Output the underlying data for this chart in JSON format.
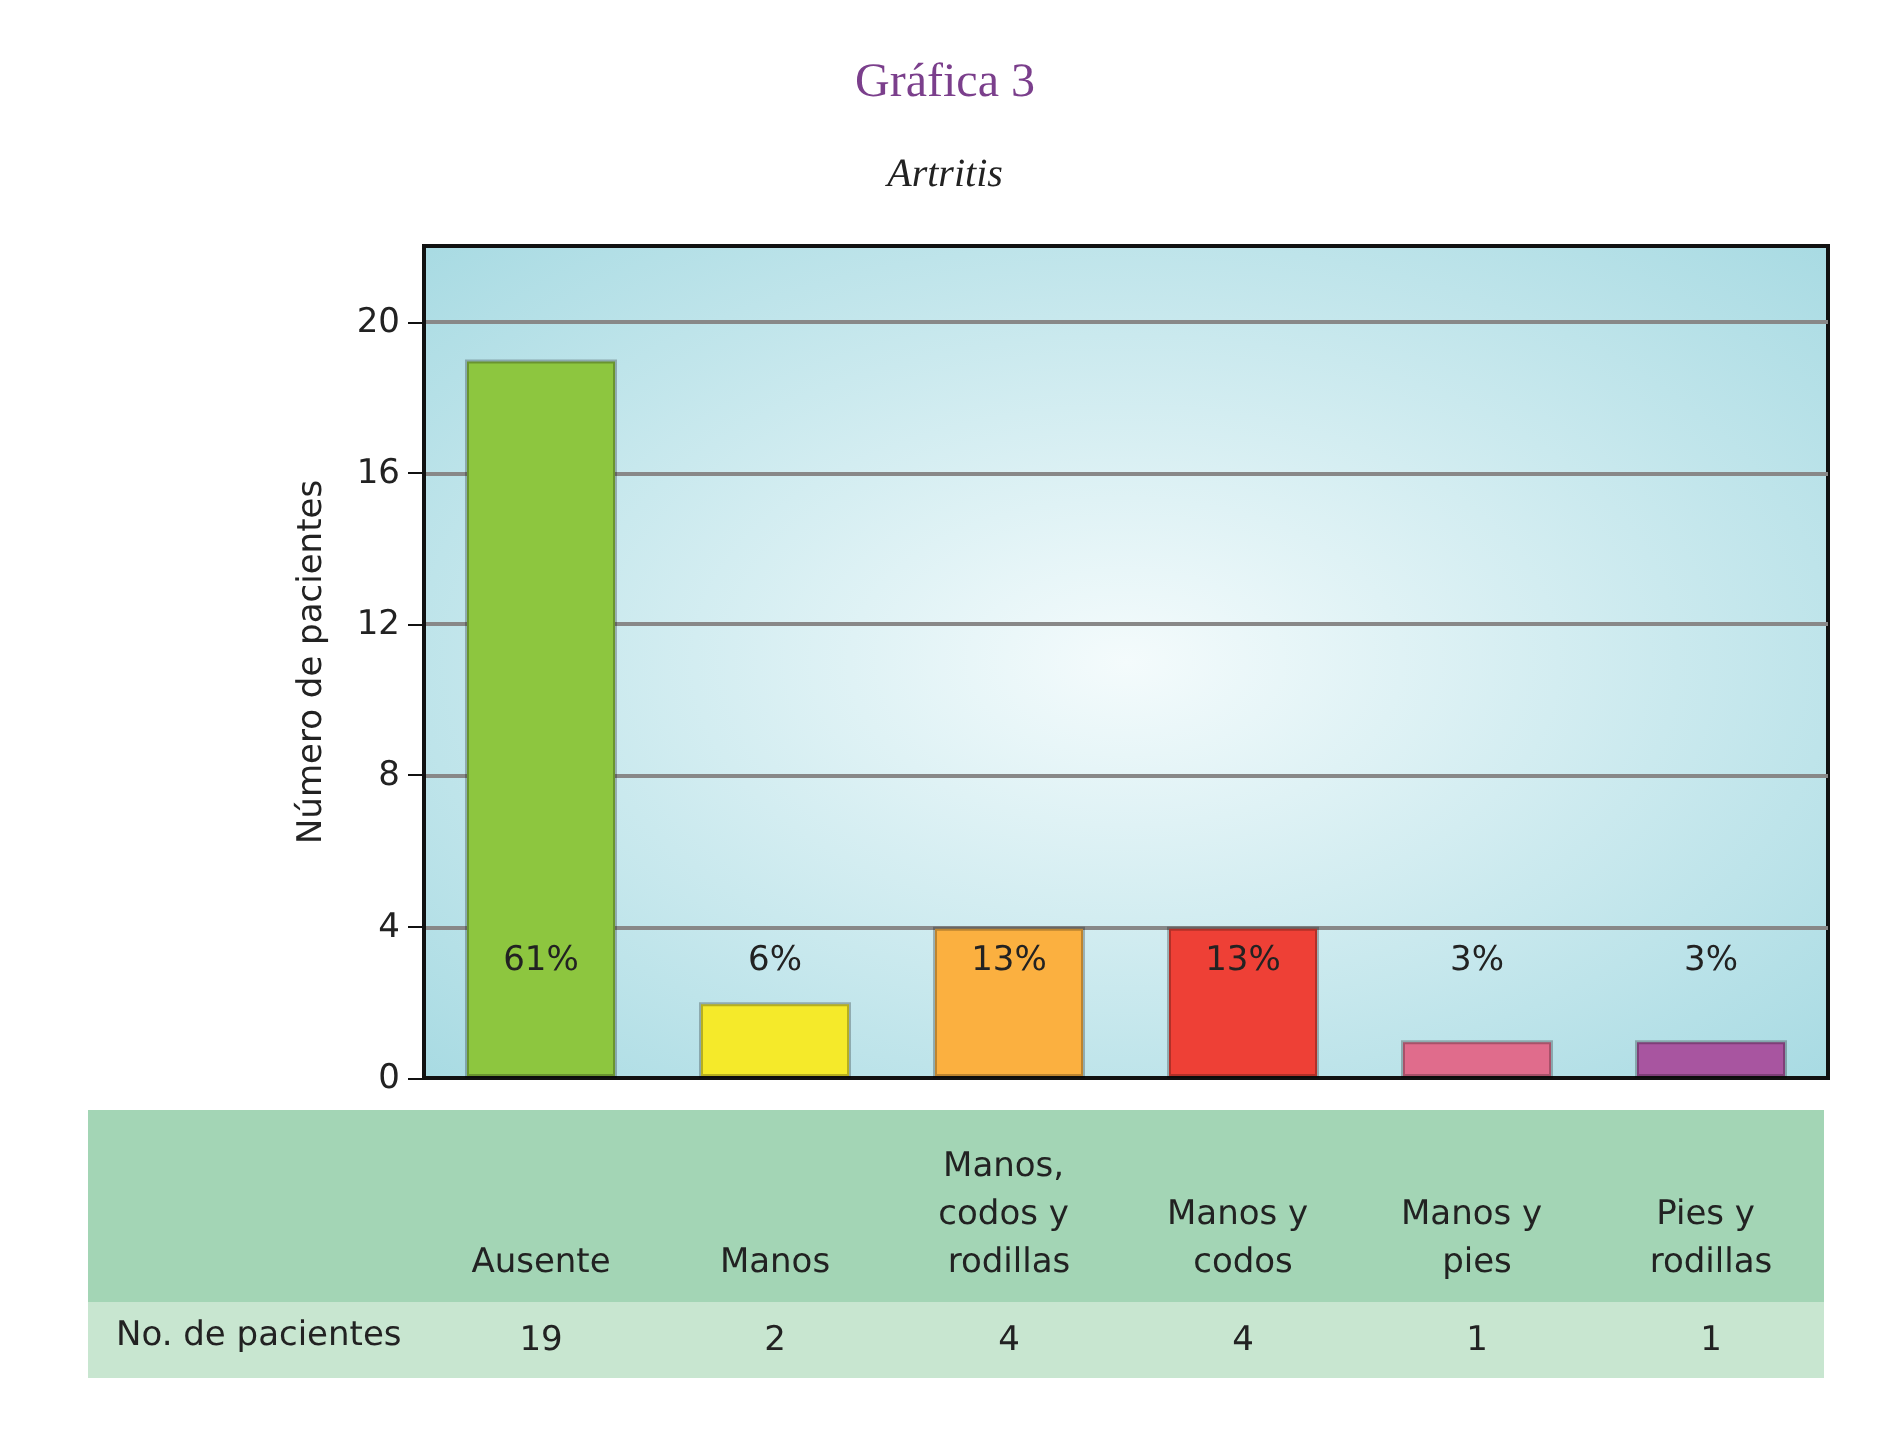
{
  "chart_data": {
    "type": "bar",
    "title": "Gráfica 3",
    "subtitle": "Artritis",
    "ylabel": "Número de pacientes",
    "categories": [
      "Ausente",
      "Manos",
      "Manos, codos y rodillas",
      "Manos y codos",
      "Manos y pies",
      "Pies y rodillas"
    ],
    "values": [
      19,
      2,
      4,
      4,
      1,
      1
    ],
    "colors": [
      "#8dc63f",
      "#f5ea2a",
      "#fbb040",
      "#ee4036",
      "#e06c8c",
      "#a855a0"
    ],
    "value_labels": [
      "19",
      "2",
      "4",
      "4",
      "1",
      "1"
    ],
    "annotations": [
      "No. de pacientes",
      "61%",
      "6%",
      "13%",
      "13%",
      "3%",
      "3%"
    ],
    "ylim": [
      0,
      22
    ],
    "yticks": [
      0,
      4,
      8,
      12,
      16,
      20
    ],
    "grid": "y"
  }
}
